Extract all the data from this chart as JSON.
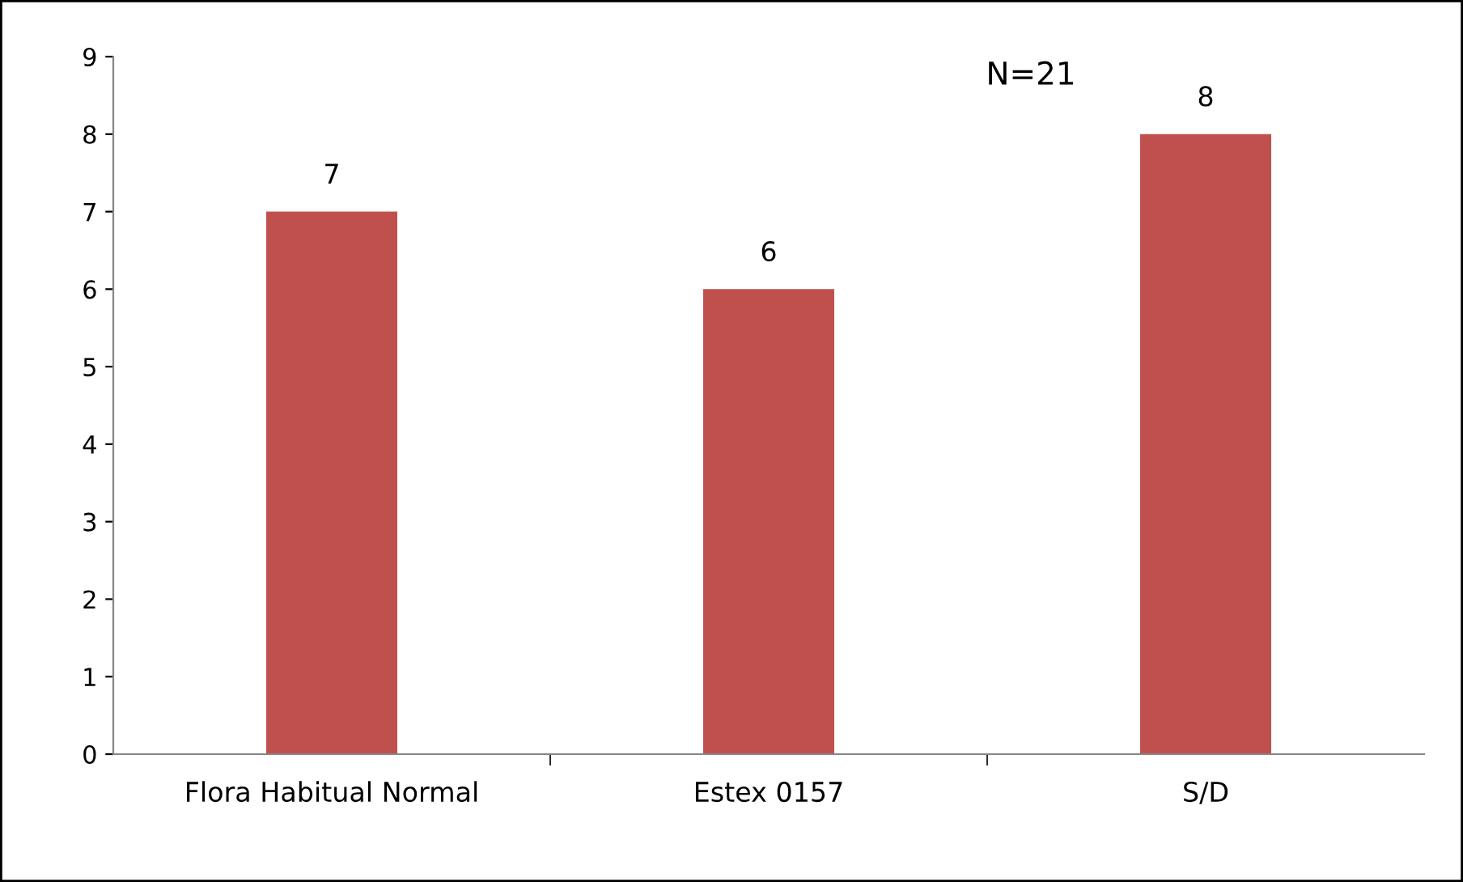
{
  "chart_data": {
    "type": "bar",
    "categories": [
      "Flora Habitual Normal",
      "Estex 0157",
      "S/D"
    ],
    "values": [
      7,
      6,
      8
    ],
    "color": "#c0504d",
    "ylim": [
      0,
      9
    ],
    "yticks": [
      0,
      1,
      2,
      3,
      4,
      5,
      6,
      7,
      8,
      9
    ],
    "grid": false,
    "data_labels": true,
    "annotations": [
      "N=21"
    ]
  }
}
